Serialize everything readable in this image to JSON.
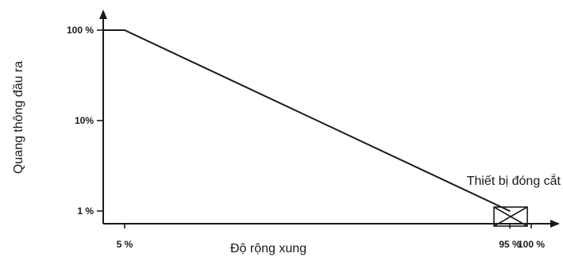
{
  "chart_data": {
    "type": "line",
    "title": "",
    "xlabel": "Độ rộng xung",
    "ylabel": "Quang thông đầu ra",
    "y_scale": "log",
    "grid": false,
    "x_ticks": [
      {
        "value": 5,
        "label": "5 %"
      },
      {
        "value": 95,
        "label": "95 %"
      },
      {
        "value": 100,
        "label": "100 %"
      }
    ],
    "y_ticks": [
      {
        "value": 100,
        "label": "100 %"
      },
      {
        "value": 10,
        "label": "10%"
      },
      {
        "value": 1,
        "label": "1 %"
      }
    ],
    "series": [
      {
        "points": [
          {
            "x": 0,
            "y": 100
          },
          {
            "x": 5,
            "y": 100
          },
          {
            "x": 95,
            "y": 1
          }
        ]
      }
    ],
    "annotations": [
      {
        "text": "Thiết bị đóng cắt",
        "x": 95,
        "y": 1
      }
    ]
  }
}
